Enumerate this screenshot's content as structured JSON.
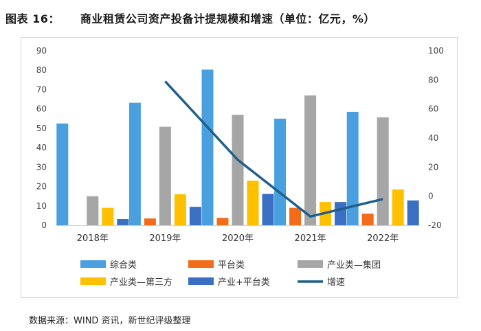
{
  "figure": {
    "label": "图表 16：",
    "title": "商业租赁公司资产投备计提规模和增速（单位：亿元，%）",
    "source": "数据来源：WIND 资讯，新世纪评级整理"
  },
  "chart_data": {
    "type": "bar",
    "categories": [
      "2018年",
      "2019年",
      "2020年",
      "2021年",
      "2022年"
    ],
    "series": [
      {
        "name": "综合类",
        "axis": "left",
        "color": "#4a9fdf",
        "values": [
          52.5,
          63.2,
          80.3,
          55,
          58.5
        ]
      },
      {
        "name": "平台类",
        "axis": "left",
        "color": "#f26c1a",
        "values": [
          null,
          3.5,
          3.8,
          9,
          6
        ]
      },
      {
        "name": "产业类—集团",
        "axis": "left",
        "color": "#a6a6a6",
        "values": [
          15,
          50.8,
          57,
          67,
          55.7
        ]
      },
      {
        "name": "产业类—第三方",
        "axis": "left",
        "color": "#ffc000",
        "values": [
          9,
          16,
          23,
          12,
          18.5
        ]
      },
      {
        "name": "产业+平台类",
        "axis": "left",
        "color": "#3a6fc4",
        "values": [
          3.2,
          9.5,
          16.2,
          12,
          12.8
        ]
      }
    ],
    "line": {
      "name": "增速",
      "axis": "right",
      "color": "#1f5f8b",
      "values": [
        null,
        79,
        25,
        -14,
        -2
      ]
    },
    "y_left": {
      "min": 0,
      "max": 90,
      "ticks": [
        0,
        10,
        20,
        30,
        40,
        50,
        60,
        70,
        80,
        90
      ]
    },
    "y_right": {
      "min": -20,
      "max": 100,
      "ticks": [
        -20,
        0,
        20,
        40,
        60,
        80,
        100
      ]
    },
    "legend_position": "bottom"
  }
}
